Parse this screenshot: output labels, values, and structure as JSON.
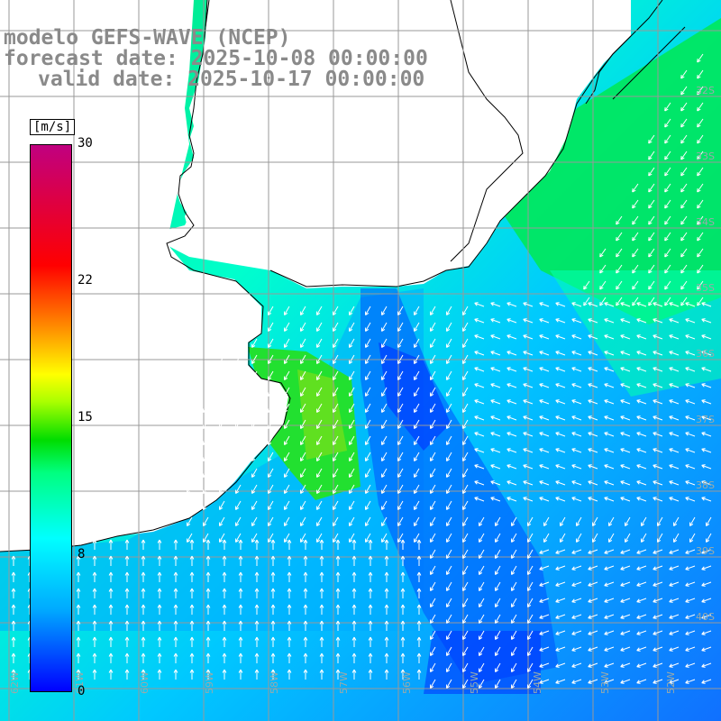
{
  "title_lines": {
    "model": "modelo GEFS-WAVE (NCEP)",
    "forecast": "forecast date: 2025-10-08 00:00:00",
    "valid": "valid date: 2025-10-17 00:00:00"
  },
  "colorbar": {
    "unit": "[m/s]",
    "ticks": [
      "30",
      "22",
      "15",
      "8",
      "0"
    ],
    "range": [
      0,
      30
    ]
  },
  "colors": {
    "land": "#ffffff",
    "coastline": "#000000",
    "grid": "#999999",
    "vectors": "#ffffff",
    "title": "#8a8a8a"
  }
}
